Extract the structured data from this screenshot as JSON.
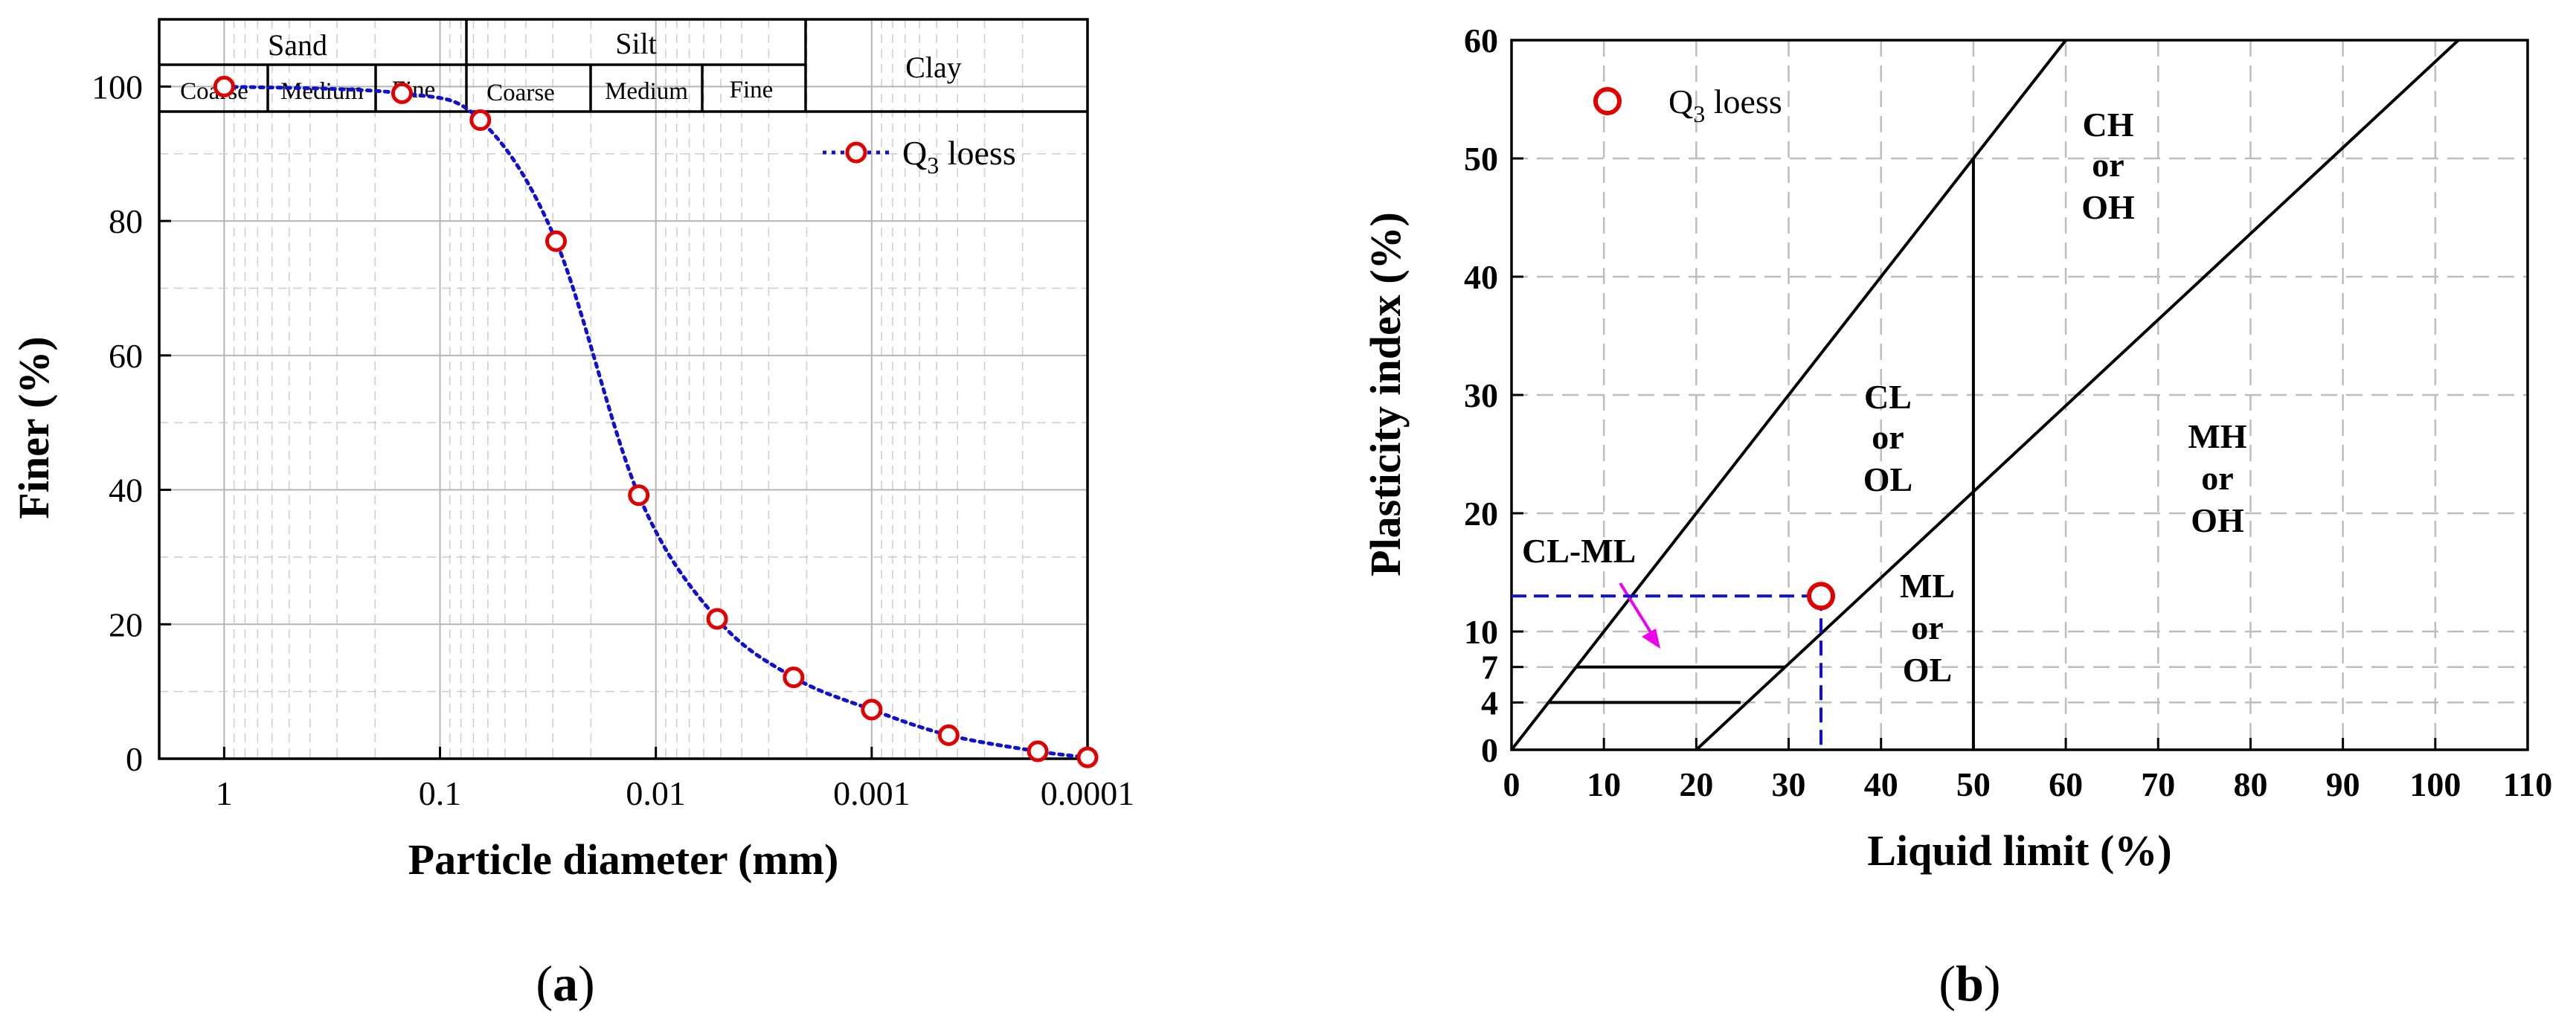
{
  "colors": {
    "marker_stroke": "#e00000",
    "fit_line": "#1010d0",
    "guide_line": "#1010d0",
    "arrow": "#ee00ee",
    "axis": "#000000"
  },
  "panel_a": {
    "caption_open": "(",
    "caption_letter": "a",
    "caption_close": ")",
    "header": {
      "sand": "Sand",
      "silt": "Silt",
      "clay": "Clay",
      "sand_sub": [
        "Coarse",
        "Medium",
        "Fine"
      ],
      "silt_sub": [
        "Coarse",
        "Medium",
        "Fine"
      ]
    },
    "legend": {
      "label": "Q",
      "subscript": "3",
      "suffix": " loess"
    }
  },
  "panel_b": {
    "caption_open": "(",
    "caption_letter": "b",
    "caption_close": ")",
    "legend": {
      "label": "Q",
      "subscript": "3",
      "suffix": " loess"
    },
    "zones": {
      "ch": [
        "CH",
        "or",
        "OH"
      ],
      "cl": [
        "CL",
        "or",
        "OL"
      ],
      "ml": [
        "ML",
        "or",
        "OL"
      ],
      "mh": [
        "MH",
        "or",
        "OH"
      ],
      "clml": "CL-ML"
    },
    "extra_ticks": [
      "4",
      "7"
    ]
  },
  "chart_data": [
    {
      "type": "line",
      "title": "",
      "xlabel": "Particle diameter (mm)",
      "ylabel": "Finer (%)",
      "xscale": "log",
      "x_reversed": true,
      "xlim": [
        2,
        0.0001
      ],
      "ylim": [
        0,
        110
      ],
      "xticks": [
        1,
        0.1,
        0.01,
        0.001,
        0.0001
      ],
      "xtick_labels": [
        "1",
        "0.1",
        "0.01",
        "0.001",
        "0.0001"
      ],
      "yticks": [
        0,
        20,
        40,
        60,
        80,
        100
      ],
      "ytick_labels": [
        "0",
        "20",
        "40",
        "60",
        "80",
        "100"
      ],
      "grid": true,
      "legend_position": "top-right",
      "series": [
        {
          "name": "Q3 loess",
          "x": [
            1,
            0.15,
            0.065,
            0.029,
            0.012,
            0.0052,
            0.0023,
            0.001,
            0.00044,
            0.00017,
            0.0001
          ],
          "y": [
            100,
            99,
            95,
            77,
            39.2,
            20.8,
            12.1,
            7.3,
            3.5,
            1.1,
            0.2
          ]
        }
      ]
    },
    {
      "type": "scatter",
      "title": "",
      "xlabel": "Liquid limit (%)",
      "ylabel": "Plasticity index (%)",
      "xlim": [
        0,
        110
      ],
      "ylim": [
        0,
        60
      ],
      "xticks": [
        0,
        10,
        20,
        30,
        40,
        50,
        60,
        70,
        80,
        90,
        100,
        110
      ],
      "xtick_labels": [
        "0",
        "10",
        "20",
        "30",
        "40",
        "50",
        "60",
        "70",
        "80",
        "90",
        "100",
        "110"
      ],
      "yticks": [
        0,
        10,
        20,
        30,
        40,
        50,
        60
      ],
      "ytick_labels": [
        "0",
        "10",
        "20",
        "30",
        "40",
        "50",
        "60"
      ],
      "grid": true,
      "legend_position": "top-left",
      "series": [
        {
          "name": "Q3 loess",
          "x": [
            33.5
          ],
          "y": [
            13
          ]
        }
      ],
      "reference_lines": {
        "u_line": [
          [
            0,
            0
          ],
          [
            60,
            60
          ]
        ],
        "a_line": [
          [
            20,
            0
          ],
          [
            102.5,
            60
          ]
        ],
        "ll_50": [
          [
            50,
            0
          ],
          [
            50,
            50
          ]
        ],
        "pi_7": [
          [
            7,
            7
          ],
          [
            29.6,
            7
          ]
        ],
        "pi_4": [
          [
            4,
            4
          ],
          [
            24.8,
            4
          ]
        ]
      }
    }
  ]
}
